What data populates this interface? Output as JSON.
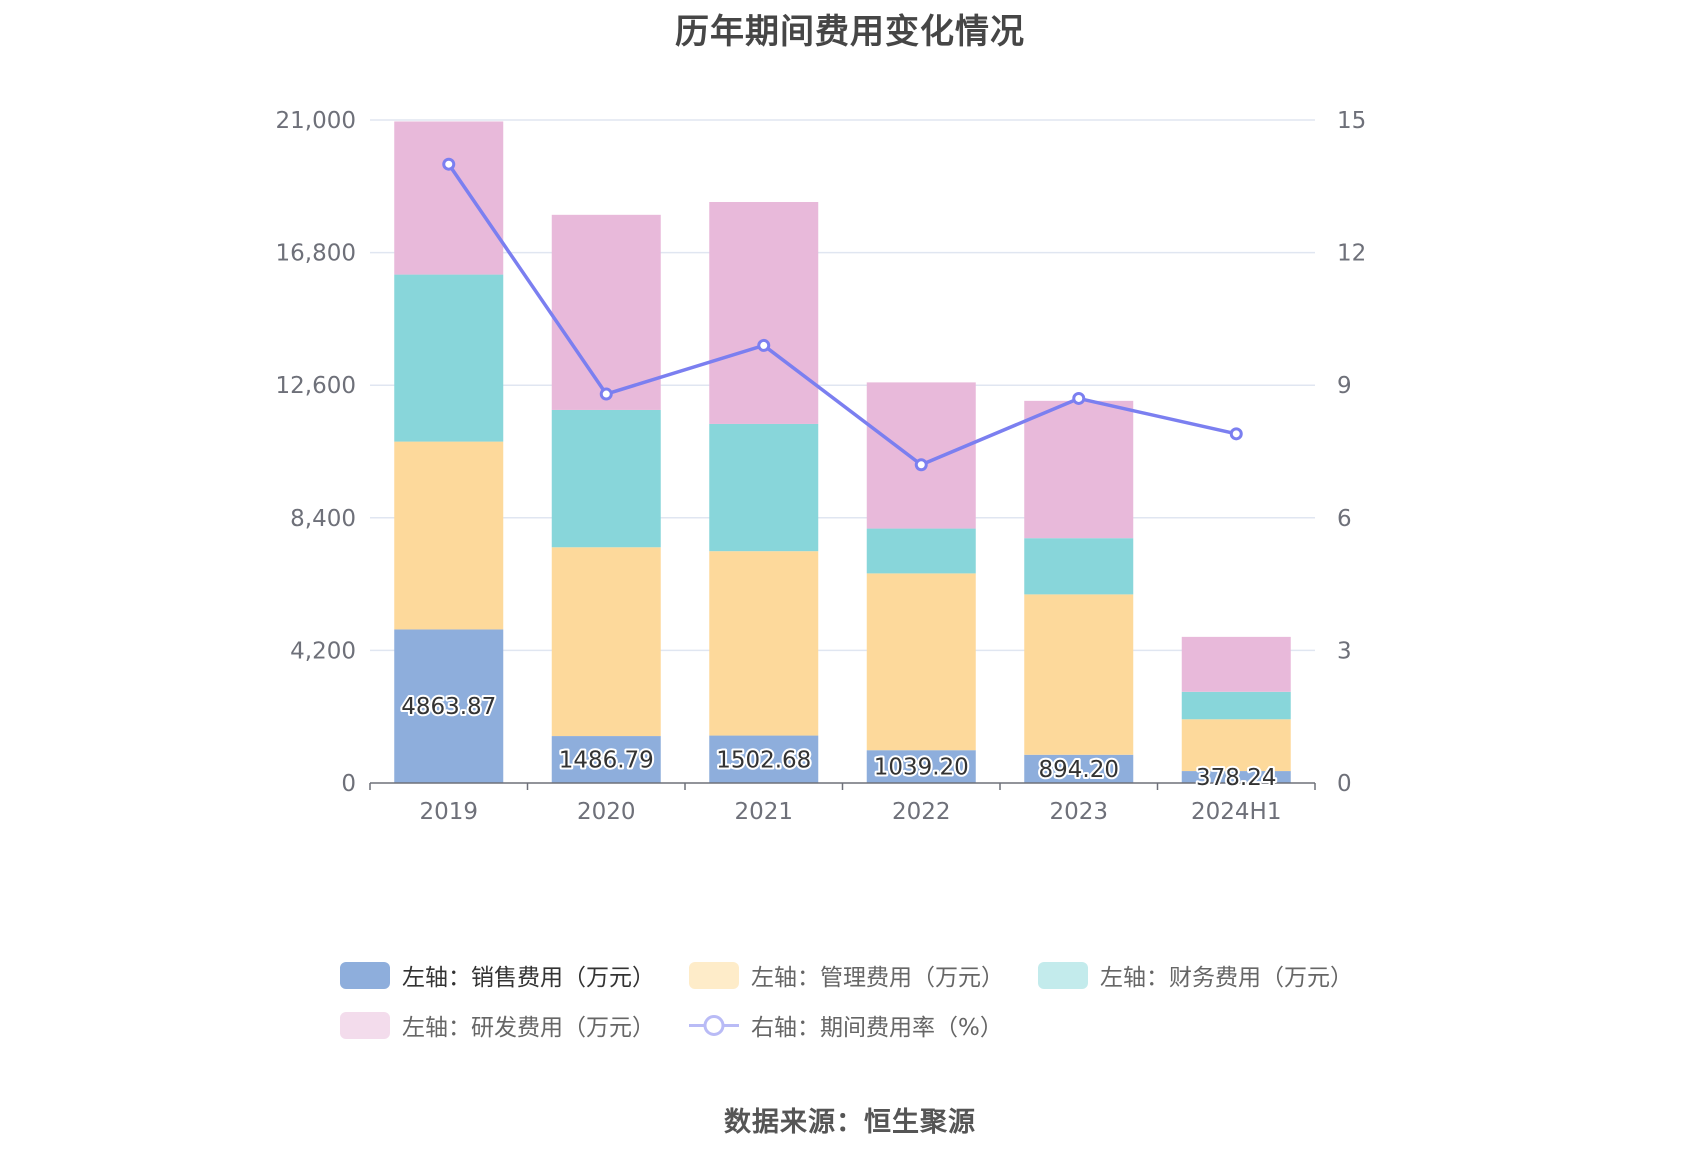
{
  "chart_data": {
    "type": "bar",
    "title": "历年期间费用变化情况",
    "categories": [
      "2019",
      "2020",
      "2021",
      "2022",
      "2023",
      "2024H1"
    ],
    "stacked": true,
    "y_left": {
      "min": 0,
      "max": 21000,
      "ticks": [
        "0",
        "4,200",
        "8,400",
        "12,600",
        "16,800",
        "21,000"
      ]
    },
    "y_right": {
      "min": 0,
      "max": 15,
      "ticks": [
        "0",
        "3",
        "6",
        "9",
        "12",
        "15"
      ]
    },
    "grid": true,
    "legend_position": "bottom",
    "series": [
      {
        "name": "左轴：销售费用（万元）",
        "axis": "left",
        "color": "#8eaedc",
        "values": [
          4863.87,
          1486.79,
          1502.68,
          1039.2,
          894.2,
          378.24
        ],
        "labels": [
          "4863.87",
          "1486.79",
          "1502.68",
          "1039.20",
          "894.20",
          "378.24"
        ]
      },
      {
        "name": "左轴：管理费用（万元）",
        "axis": "left",
        "color": "#fdd99b",
        "values": [
          5950,
          5980,
          5840,
          5600,
          5080,
          1640
        ]
      },
      {
        "name": "左轴：财务费用（万元）",
        "axis": "left",
        "color": "#88d6da",
        "values": [
          5290,
          4350,
          4030,
          1420,
          1780,
          870
        ]
      },
      {
        "name": "左轴：研发费用（万元）",
        "axis": "left",
        "color": "#e8b9da",
        "values": [
          4850,
          6180,
          7030,
          4630,
          4350,
          1740
        ]
      },
      {
        "name": "右轴：期间费用率（%）",
        "axis": "right",
        "type": "line",
        "color": "#7b7ff0",
        "values": [
          14.0,
          8.8,
          9.9,
          7.2,
          8.7,
          7.9
        ]
      }
    ]
  },
  "source": "数据来源：恒生聚源"
}
